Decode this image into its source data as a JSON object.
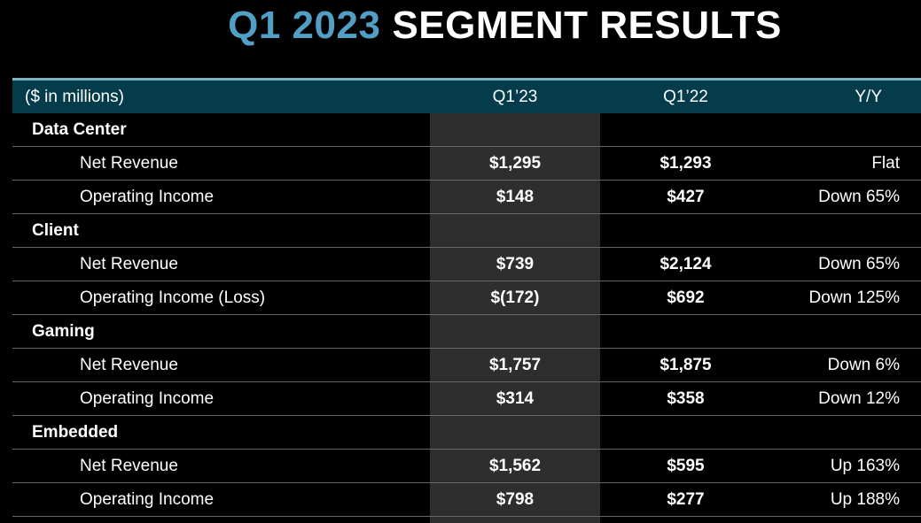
{
  "title": {
    "quarter": "Q1 2023",
    "text": "SEGMENT RESULTS"
  },
  "table": {
    "unit_label": "($ in millions)",
    "columns": [
      "Q1’23",
      "Q1’22",
      "Y/Y"
    ],
    "sections": [
      {
        "name": "Data Center",
        "rows": [
          {
            "label": "Net Revenue",
            "q1_23": "$1,295",
            "q1_22": "$1,293",
            "yoy": "Flat"
          },
          {
            "label": "Operating Income",
            "q1_23": "$148",
            "q1_22": "$427",
            "yoy": "Down 65%"
          }
        ]
      },
      {
        "name": "Client",
        "rows": [
          {
            "label": "Net Revenue",
            "q1_23": "$739",
            "q1_22": "$2,124",
            "yoy": "Down 65%"
          },
          {
            "label": "Operating Income (Loss)",
            "q1_23": "$(172)",
            "q1_22": "$692",
            "yoy": "Down 125%"
          }
        ]
      },
      {
        "name": "Gaming",
        "rows": [
          {
            "label": "Net Revenue",
            "q1_23": "$1,757",
            "q1_22": "$1,875",
            "yoy": "Down 6%"
          },
          {
            "label": "Operating Income",
            "q1_23": "$314",
            "q1_22": "$358",
            "yoy": "Down 12%"
          }
        ]
      },
      {
        "name": "Embedded",
        "rows": [
          {
            "label": "Net Revenue",
            "q1_23": "$1,562",
            "q1_22": "$595",
            "yoy": "Up 163%"
          },
          {
            "label": "Operating Income",
            "q1_23": "$798",
            "q1_22": "$277",
            "yoy": "Up 188%"
          }
        ]
      }
    ]
  },
  "colors": {
    "background": "#000000",
    "header_bar": "#053c4b",
    "header_top_edge": "#7fb0c2",
    "title_accent": "#519fc5",
    "highlight_column": "#2e2e2e",
    "row_divider": "#666666",
    "text": "#ffffff"
  },
  "chart_data": {
    "type": "table",
    "title": "Q1 2023 SEGMENT RESULTS",
    "unit": "($ in millions)",
    "columns": [
      "Segment / Metric",
      "Q1’23",
      "Q1’22",
      "Y/Y"
    ],
    "rows": [
      {
        "section": "Data Center",
        "metric": "Net Revenue",
        "q1_2023": 1295,
        "q1_2022": 1293,
        "yoy": "Flat"
      },
      {
        "section": "Data Center",
        "metric": "Operating Income",
        "q1_2023": 148,
        "q1_2022": 427,
        "yoy": "Down 65%"
      },
      {
        "section": "Client",
        "metric": "Net Revenue",
        "q1_2023": 739,
        "q1_2022": 2124,
        "yoy": "Down 65%"
      },
      {
        "section": "Client",
        "metric": "Operating Income (Loss)",
        "q1_2023": -172,
        "q1_2022": 692,
        "yoy": "Down 125%"
      },
      {
        "section": "Gaming",
        "metric": "Net Revenue",
        "q1_2023": 1757,
        "q1_2022": 1875,
        "yoy": "Down 6%"
      },
      {
        "section": "Gaming",
        "metric": "Operating Income",
        "q1_2023": 314,
        "q1_2022": 358,
        "yoy": "Down 12%"
      },
      {
        "section": "Embedded",
        "metric": "Net Revenue",
        "q1_2023": 1562,
        "q1_2022": 595,
        "yoy": "Up 163%"
      },
      {
        "section": "Embedded",
        "metric": "Operating Income",
        "q1_2023": 798,
        "q1_2022": 277,
        "yoy": "Up 188%"
      }
    ],
    "highlighted_column": "Q1’23"
  }
}
